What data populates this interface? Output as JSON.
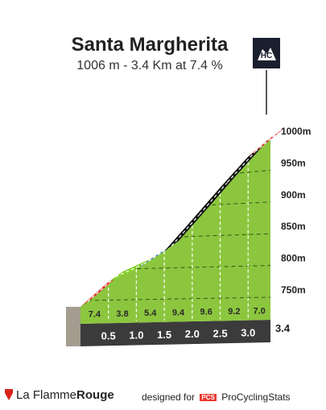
{
  "header": {
    "title": "Santa Margherita",
    "subtitle": "1006 m - 3.4 Km at 7.4 %"
  },
  "badge": {
    "label": "HC"
  },
  "footer": {
    "brand_left": "La Flamme",
    "brand_right": "Rouge",
    "designed_for": "designed for",
    "pcs_a": "PCS",
    "pcs_b": "",
    "site": "ProCyclingStats"
  },
  "chart_data": {
    "type": "area",
    "title": "Santa Margherita",
    "subtitle": "1006 m - 3.4 Km at 7.4 %",
    "y_unit": "m",
    "ylim": [
      700,
      1006
    ],
    "y_ticks": [
      750,
      800,
      850,
      900,
      950,
      1000
    ],
    "y_tick_labels": [
      "750m",
      "800m",
      "850m",
      "900m",
      "950m",
      "1000m"
    ],
    "distance_markers": [
      "0.5",
      "1.0",
      "1.5",
      "2.0",
      "2.5",
      "3.0",
      "3.4"
    ],
    "distance_values": [
      0.5,
      1.0,
      1.5,
      2.0,
      2.5,
      3.0,
      3.4
    ],
    "segments": [
      {
        "from_km": 0.0,
        "to_km": 0.5,
        "gradient": 7.4,
        "gradient_label": "7.4",
        "color": "#e2222b"
      },
      {
        "from_km": 0.5,
        "to_km": 1.0,
        "gradient": 3.8,
        "gradient_label": "3.8",
        "color": "#7fcf1f"
      },
      {
        "from_km": 1.0,
        "to_km": 1.5,
        "gradient": 5.4,
        "gradient_label": "5.4",
        "color": "#1f73b5"
      },
      {
        "from_km": 1.5,
        "to_km": 2.0,
        "gradient": 9.4,
        "gradient_label": "9.4",
        "color": "#111111"
      },
      {
        "from_km": 2.0,
        "to_km": 2.5,
        "gradient": 9.6,
        "gradient_label": "9.6",
        "color": "#111111"
      },
      {
        "from_km": 2.5,
        "to_km": 3.0,
        "gradient": 9.2,
        "gradient_label": "9.2",
        "color": "#111111"
      },
      {
        "from_km": 3.0,
        "to_km": 3.4,
        "gradient": 7.0,
        "gradient_label": "7.0",
        "color": "#e2222b"
      }
    ],
    "colors": {
      "fill": "#8cc63e",
      "base_dark": "#3b3b3b",
      "side_face": "#a39c8f",
      "grid": "#2f5a14"
    }
  }
}
